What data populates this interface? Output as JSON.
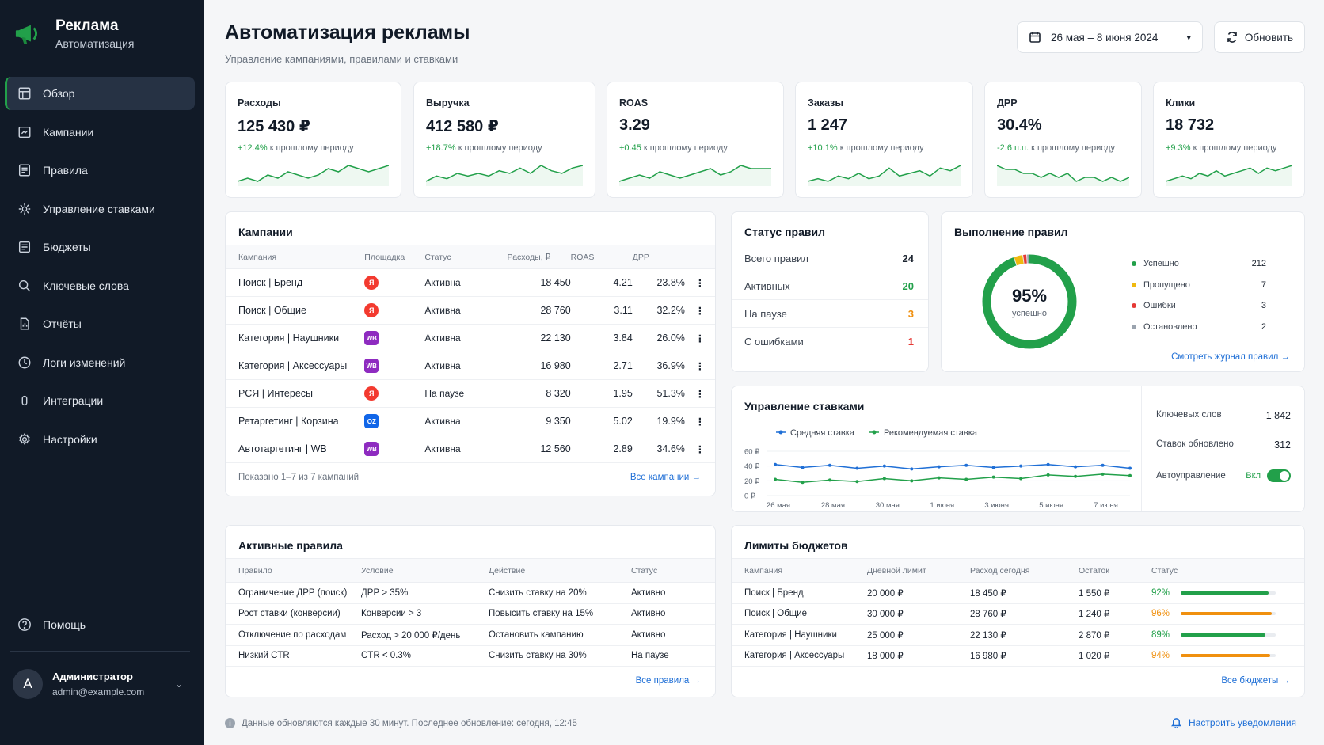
{
  "brand": {
    "title": "Реклама",
    "subtitle": "Автоматизация"
  },
  "nav": [
    {
      "label": "Обзор",
      "icon": "dashboard-icon"
    },
    {
      "label": "Кампании",
      "icon": "campaigns-icon"
    },
    {
      "label": "Правила",
      "icon": "rules-icon"
    },
    {
      "label": "Управление ставками",
      "icon": "bids-icon"
    },
    {
      "label": "Бюджеты",
      "icon": "budget-icon"
    },
    {
      "label": "Ключевые слова",
      "icon": "search-icon"
    },
    {
      "label": "Отчёты",
      "icon": "reports-icon"
    },
    {
      "label": "Логи изменений",
      "icon": "clock-icon"
    },
    {
      "label": "Интеграции",
      "icon": "integrations-icon"
    },
    {
      "label": "Настройки",
      "icon": "gear-icon"
    }
  ],
  "help": "Помощь",
  "user": {
    "initial": "A",
    "name": "Администратор",
    "email": "admin@example.com"
  },
  "header": {
    "title": "Автоматизация рекламы",
    "subtitle": "Управление кампаниями, правилами и ставками",
    "date_range": "26 мая – 8 июня 2024",
    "refresh": "Обновить"
  },
  "kpis": [
    {
      "label": "Расходы",
      "value": "125 430 ₽",
      "delta": "+12.4%",
      "delta_text": "к прошлому периоду",
      "spark": [
        4,
        5,
        4,
        6,
        5,
        7,
        6,
        5,
        6,
        8,
        7,
        9,
        8,
        7,
        8,
        9
      ]
    },
    {
      "label": "Выручка",
      "value": "412 580 ₽",
      "delta": "+18.7%",
      "delta_text": "к прошлому периоду",
      "spark": [
        3,
        5,
        4,
        6,
        5,
        6,
        5,
        7,
        6,
        8,
        6,
        9,
        7,
        6,
        8,
        9
      ]
    },
    {
      "label": "ROAS",
      "value": "3.29",
      "delta": "+0.45",
      "delta_text": "к прошлому периоду",
      "spark": [
        4,
        5,
        6,
        5,
        7,
        6,
        5,
        6,
        7,
        8,
        6,
        7,
        9,
        8,
        8,
        8
      ]
    },
    {
      "label": "Заказы",
      "value": "1 247",
      "delta": "+10.1%",
      "delta_text": "к прошлому периоду",
      "spark": [
        3,
        4,
        3,
        5,
        4,
        6,
        4,
        5,
        8,
        5,
        6,
        7,
        5,
        8,
        7,
        9
      ]
    },
    {
      "label": "ДРР",
      "value": "30.4%",
      "delta": "-2.6 п.п.",
      "delta_text": "к прошлому периоду",
      "spark": [
        8,
        7,
        7,
        6,
        6,
        5,
        6,
        5,
        6,
        4,
        5,
        5,
        4,
        5,
        4,
        5
      ]
    },
    {
      "label": "Клики",
      "value": "18 732",
      "delta": "+9.3%",
      "delta_text": "к прошлому периоду",
      "spark": [
        3,
        4,
        5,
        4,
        6,
        5,
        7,
        5,
        6,
        7,
        8,
        6,
        8,
        7,
        8,
        9
      ]
    }
  ],
  "campaigns": {
    "title": "Кампании",
    "columns": [
      "Кампания",
      "Площадка",
      "Статус",
      "Расходы, ₽",
      "ROAS",
      "ДРР"
    ],
    "rows": [
      {
        "name": "Поиск | Бренд",
        "platform": "ya",
        "platform_label": "Я",
        "status": "Активна",
        "state": "active",
        "spend": "18 450",
        "roas": "4.21",
        "drr": "23.8%"
      },
      {
        "name": "Поиск | Общие",
        "platform": "ya",
        "platform_label": "Я",
        "status": "Активна",
        "state": "active",
        "spend": "28 760",
        "roas": "3.11",
        "drr": "32.2%"
      },
      {
        "name": "Категория | Наушники",
        "platform": "wb",
        "platform_label": "WB",
        "status": "Активна",
        "state": "active",
        "spend": "22 130",
        "roas": "3.84",
        "drr": "26.0%"
      },
      {
        "name": "Категория | Аксессуары",
        "platform": "wb",
        "platform_label": "WB",
        "status": "Активна",
        "state": "active",
        "spend": "16 980",
        "roas": "2.71",
        "drr": "36.9%"
      },
      {
        "name": "РСЯ | Интересы",
        "platform": "ya",
        "platform_label": "Я",
        "status": "На паузе",
        "state": "pause",
        "spend": "8 320",
        "roas": "1.95",
        "drr": "51.3%"
      },
      {
        "name": "Ретаргетинг | Корзина",
        "platform": "oz",
        "platform_label": "OZ",
        "status": "Активна",
        "state": "active",
        "spend": "9 350",
        "roas": "5.02",
        "drr": "19.9%"
      },
      {
        "name": "Автотаргетинг | WB",
        "platform": "wb",
        "platform_label": "WB",
        "status": "Активна",
        "state": "active",
        "spend": "12 560",
        "roas": "2.89",
        "drr": "34.6%"
      }
    ],
    "shown": "Показано 1–7 из 7 кампаний",
    "all_link": "Все кампании →"
  },
  "rules_status": {
    "title": "Статус правил",
    "rows": [
      {
        "label": "Всего правил",
        "value": "24",
        "color": "#1c2430"
      },
      {
        "label": "Активных",
        "value": "20",
        "color": "#22a04a"
      },
      {
        "label": "На паузе",
        "value": "3",
        "color": "#f0900f"
      },
      {
        "label": "С ошибками",
        "value": "1",
        "color": "#e53935"
      }
    ]
  },
  "rules_exec": {
    "title": "Выполнение правил",
    "percent": "95%",
    "percent_label": "успешно",
    "legend": [
      {
        "label": "Успешно",
        "value": 212,
        "color": "#22a04a"
      },
      {
        "label": "Пропущено",
        "value": 7,
        "color": "#f0b90f"
      },
      {
        "label": "Ошибки",
        "value": 3,
        "color": "#e53935"
      },
      {
        "label": "Остановлено",
        "value": 2,
        "color": "#9aa3ae"
      }
    ],
    "journal_link": "Смотреть журнал правил →"
  },
  "bids": {
    "title": "Управление ставками",
    "stats": [
      {
        "label": "Ключевых слов",
        "value": "1 842"
      },
      {
        "label": "Ставок обновлено",
        "value": "312"
      }
    ],
    "auto_label": "Автоуправление",
    "auto_value": "Вкл",
    "chart_data": {
      "type": "line",
      "x": [
        "26 мая",
        "27 мая",
        "28 мая",
        "29 мая",
        "30 мая",
        "31 мая",
        "1 июня",
        "2 июня",
        "3 июня",
        "4 июня",
        "5 июня",
        "6 июня",
        "7 июня",
        "8 июня"
      ],
      "xticks": [
        "26 мая",
        "28 мая",
        "30 мая",
        "1 июня",
        "3 июня",
        "5 июня",
        "7 июня"
      ],
      "yticks": [
        "60 ₽",
        "40 ₽",
        "20 ₽",
        "0 ₽"
      ],
      "ylim": [
        0,
        60
      ],
      "series": [
        {
          "name": "Средняя ставка",
          "color": "#1f6fd6",
          "values": [
            42,
            38,
            41,
            37,
            40,
            36,
            39,
            41,
            38,
            40,
            42,
            39,
            41,
            37
          ]
        },
        {
          "name": "Рекомендуемая ставка",
          "color": "#22a04a",
          "values": [
            22,
            18,
            21,
            19,
            23,
            20,
            24,
            22,
            25,
            23,
            28,
            26,
            29,
            27
          ]
        }
      ]
    }
  },
  "active_rules": {
    "title": "Активные правила",
    "columns": [
      "Правило",
      "Условие",
      "Действие",
      "Статус"
    ],
    "rows": [
      {
        "name": "Ограничение ДРР (поиск)",
        "cond": "ДРР > 35%",
        "action": "Снизить ставку на 20%",
        "status": "Активно",
        "state": "active"
      },
      {
        "name": "Рост ставки (конверсии)",
        "cond": "Конверсии > 3",
        "action": "Повысить ставку на 15%",
        "status": "Активно",
        "state": "active"
      },
      {
        "name": "Отключение по расходам",
        "cond": "Расход > 20 000 ₽/день",
        "action": "Остановить кампанию",
        "status": "Активно",
        "state": "active"
      },
      {
        "name": "Низкий CTR",
        "cond": "CTR < 0.3%",
        "action": "Снизить ставку на 30%",
        "status": "На паузе",
        "state": "pause"
      }
    ],
    "all_link": "Все правила →"
  },
  "budgets": {
    "title": "Лимиты бюджетов",
    "columns": [
      "Кампания",
      "Дневной лимит",
      "Расход сегодня",
      "Остаток",
      "Статус"
    ],
    "rows": [
      {
        "name": "Поиск | Бренд",
        "limit": "20 000 ₽",
        "spent": "18 450 ₽",
        "rest": "1 550 ₽",
        "pct": "92%",
        "fill": 0.92,
        "color": "#22a04a"
      },
      {
        "name": "Поиск | Общие",
        "limit": "30 000 ₽",
        "spent": "28 760 ₽",
        "rest": "1 240 ₽",
        "pct": "96%",
        "fill": 0.96,
        "color": "#f0900f"
      },
      {
        "name": "Категория | Наушники",
        "limit": "25 000 ₽",
        "spent": "22 130 ₽",
        "rest": "2 870 ₽",
        "pct": "89%",
        "fill": 0.89,
        "color": "#22a04a"
      },
      {
        "name": "Категория | Аксессуары",
        "limit": "18 000 ₽",
        "spent": "16 980 ₽",
        "rest": "1 020 ₽",
        "pct": "94%",
        "fill": 0.94,
        "color": "#f0900f"
      }
    ],
    "all_link": "Все бюджеты →"
  },
  "footer": {
    "note": "Данные обновляются каждые 30 минут. Последнее обновление: сегодня, 12:45",
    "notify": "Настроить уведомления"
  }
}
